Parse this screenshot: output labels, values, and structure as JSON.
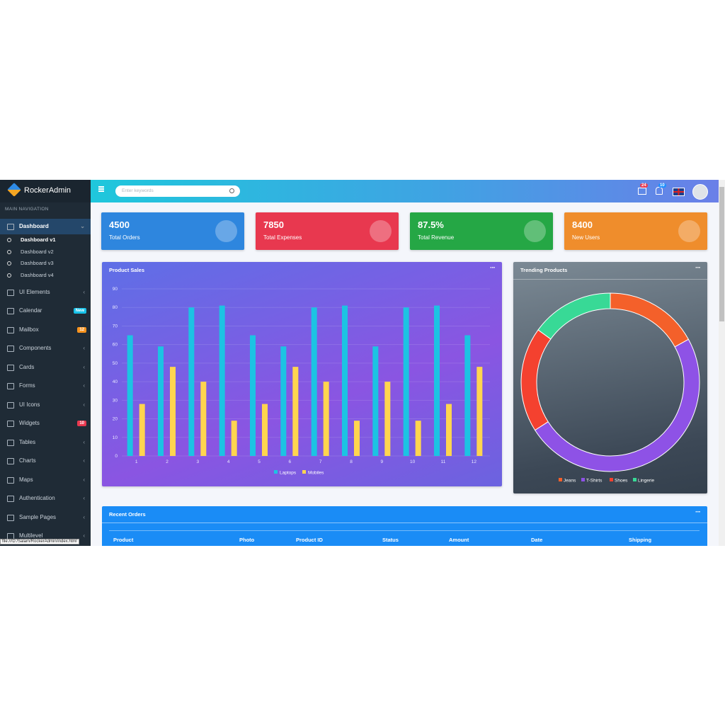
{
  "sidebar": {
    "brand": "RockerAdmin",
    "section": "MAIN NAVIGATION",
    "items": [
      {
        "label": "Dashboard",
        "children": [
          "Dashboard v1",
          "Dashboard v2",
          "Dashboard v3",
          "Dashboard v4"
        ]
      },
      {
        "label": "UI Elements"
      },
      {
        "label": "Calendar",
        "badge": "New"
      },
      {
        "label": "Mailbox",
        "badge": "12"
      },
      {
        "label": "Components"
      },
      {
        "label": "Cards"
      },
      {
        "label": "Forms"
      },
      {
        "label": "UI Icons"
      },
      {
        "label": "Widgets",
        "badge": "10"
      },
      {
        "label": "Tables"
      },
      {
        "label": "Charts"
      },
      {
        "label": "Maps"
      },
      {
        "label": "Authentication"
      },
      {
        "label": "Sample Pages"
      },
      {
        "label": "Multilevel"
      }
    ]
  },
  "topbar": {
    "search_placeholder": "Enter keywords",
    "mail_badge": "24",
    "notification_badge": "10"
  },
  "stats": [
    {
      "value": "4500",
      "label": "Total Orders"
    },
    {
      "value": "7850",
      "label": "Total Expenses"
    },
    {
      "value": "87.5%",
      "label": "Total Revenue"
    },
    {
      "value": "8400",
      "label": "New Users"
    }
  ],
  "recent_orders": {
    "title": "Recent Orders",
    "columns": [
      "Product",
      "Photo",
      "Product ID",
      "Status",
      "Amount",
      "Date",
      "Shipping"
    ]
  },
  "status_url": "file:///D:/Salam/RockerAdmin/index.html",
  "chart_data": [
    {
      "type": "bar",
      "title": "Product Sales",
      "categories": [
        "1",
        "2",
        "3",
        "4",
        "5",
        "6",
        "7",
        "8",
        "9",
        "10",
        "11",
        "12"
      ],
      "series": [
        {
          "name": "Laptops",
          "color": "#1cc3e3",
          "values": [
            65,
            59,
            80,
            81,
            65,
            59,
            80,
            81,
            59,
            80,
            81,
            65
          ]
        },
        {
          "name": "Mobiles",
          "color": "#ffd54f",
          "values": [
            28,
            48,
            40,
            19,
            28,
            48,
            40,
            19,
            40,
            19,
            28,
            48
          ]
        }
      ],
      "ylim": [
        0,
        90
      ],
      "yticks": [
        0,
        10,
        20,
        30,
        40,
        50,
        60,
        70,
        80,
        90
      ],
      "grid": true
    },
    {
      "type": "doughnut",
      "title": "Trending Products",
      "categories": [
        "Jeans",
        "T-Shirts",
        "Shoes",
        "Lingerie"
      ],
      "values": [
        17,
        49,
        19,
        15
      ],
      "colors": [
        "#f4602a",
        "#8e52e6",
        "#f4412f",
        "#38d996"
      ]
    }
  ]
}
